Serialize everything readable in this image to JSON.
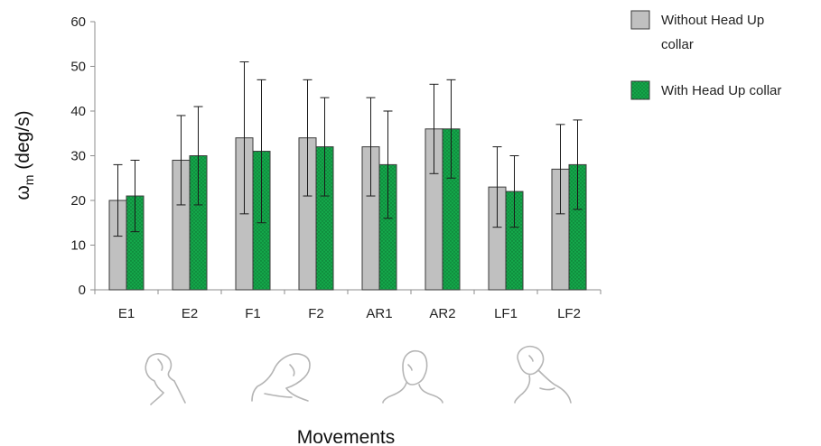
{
  "chart_data": {
    "type": "bar",
    "categories": [
      "E1",
      "E2",
      "F1",
      "F2",
      "AR1",
      "AR2",
      "LF1",
      "LF2"
    ],
    "series": [
      {
        "name": "Without Head Up collar",
        "legend_lines": [
          "Without Head Up",
          "collar"
        ],
        "values": [
          20,
          29,
          34,
          34,
          32,
          36,
          23,
          27
        ],
        "err_low": [
          12,
          19,
          17,
          21,
          21,
          26,
          14,
          17
        ],
        "err_high": [
          28,
          39,
          51,
          47,
          43,
          46,
          32,
          37
        ],
        "color": "#c0c0c0",
        "pattern": "none"
      },
      {
        "name": "With Head Up collar",
        "legend_lines": [
          "With Head Up collar"
        ],
        "values": [
          21,
          30,
          31,
          32,
          28,
          36,
          22,
          28
        ],
        "err_low": [
          13,
          19,
          15,
          21,
          16,
          25,
          14,
          18
        ],
        "err_high": [
          29,
          41,
          47,
          43,
          40,
          47,
          30,
          38
        ],
        "color": "#14a64a",
        "pattern": "dots"
      }
    ],
    "ylabel_main": "ω",
    "ylabel_sub": "m",
    "ylabel_unit": " (deg/s)",
    "xlabel": "Movements",
    "ylim": [
      0,
      60
    ],
    "yticks": [
      0,
      10,
      20,
      30,
      40,
      50,
      60
    ],
    "grid": false,
    "legend_position": "top-right",
    "error_bars": true
  },
  "icons": [
    "head-extension-icon",
    "head-flexion-icon",
    "head-axial-rotation-icon",
    "head-lateral-flexion-icon"
  ]
}
